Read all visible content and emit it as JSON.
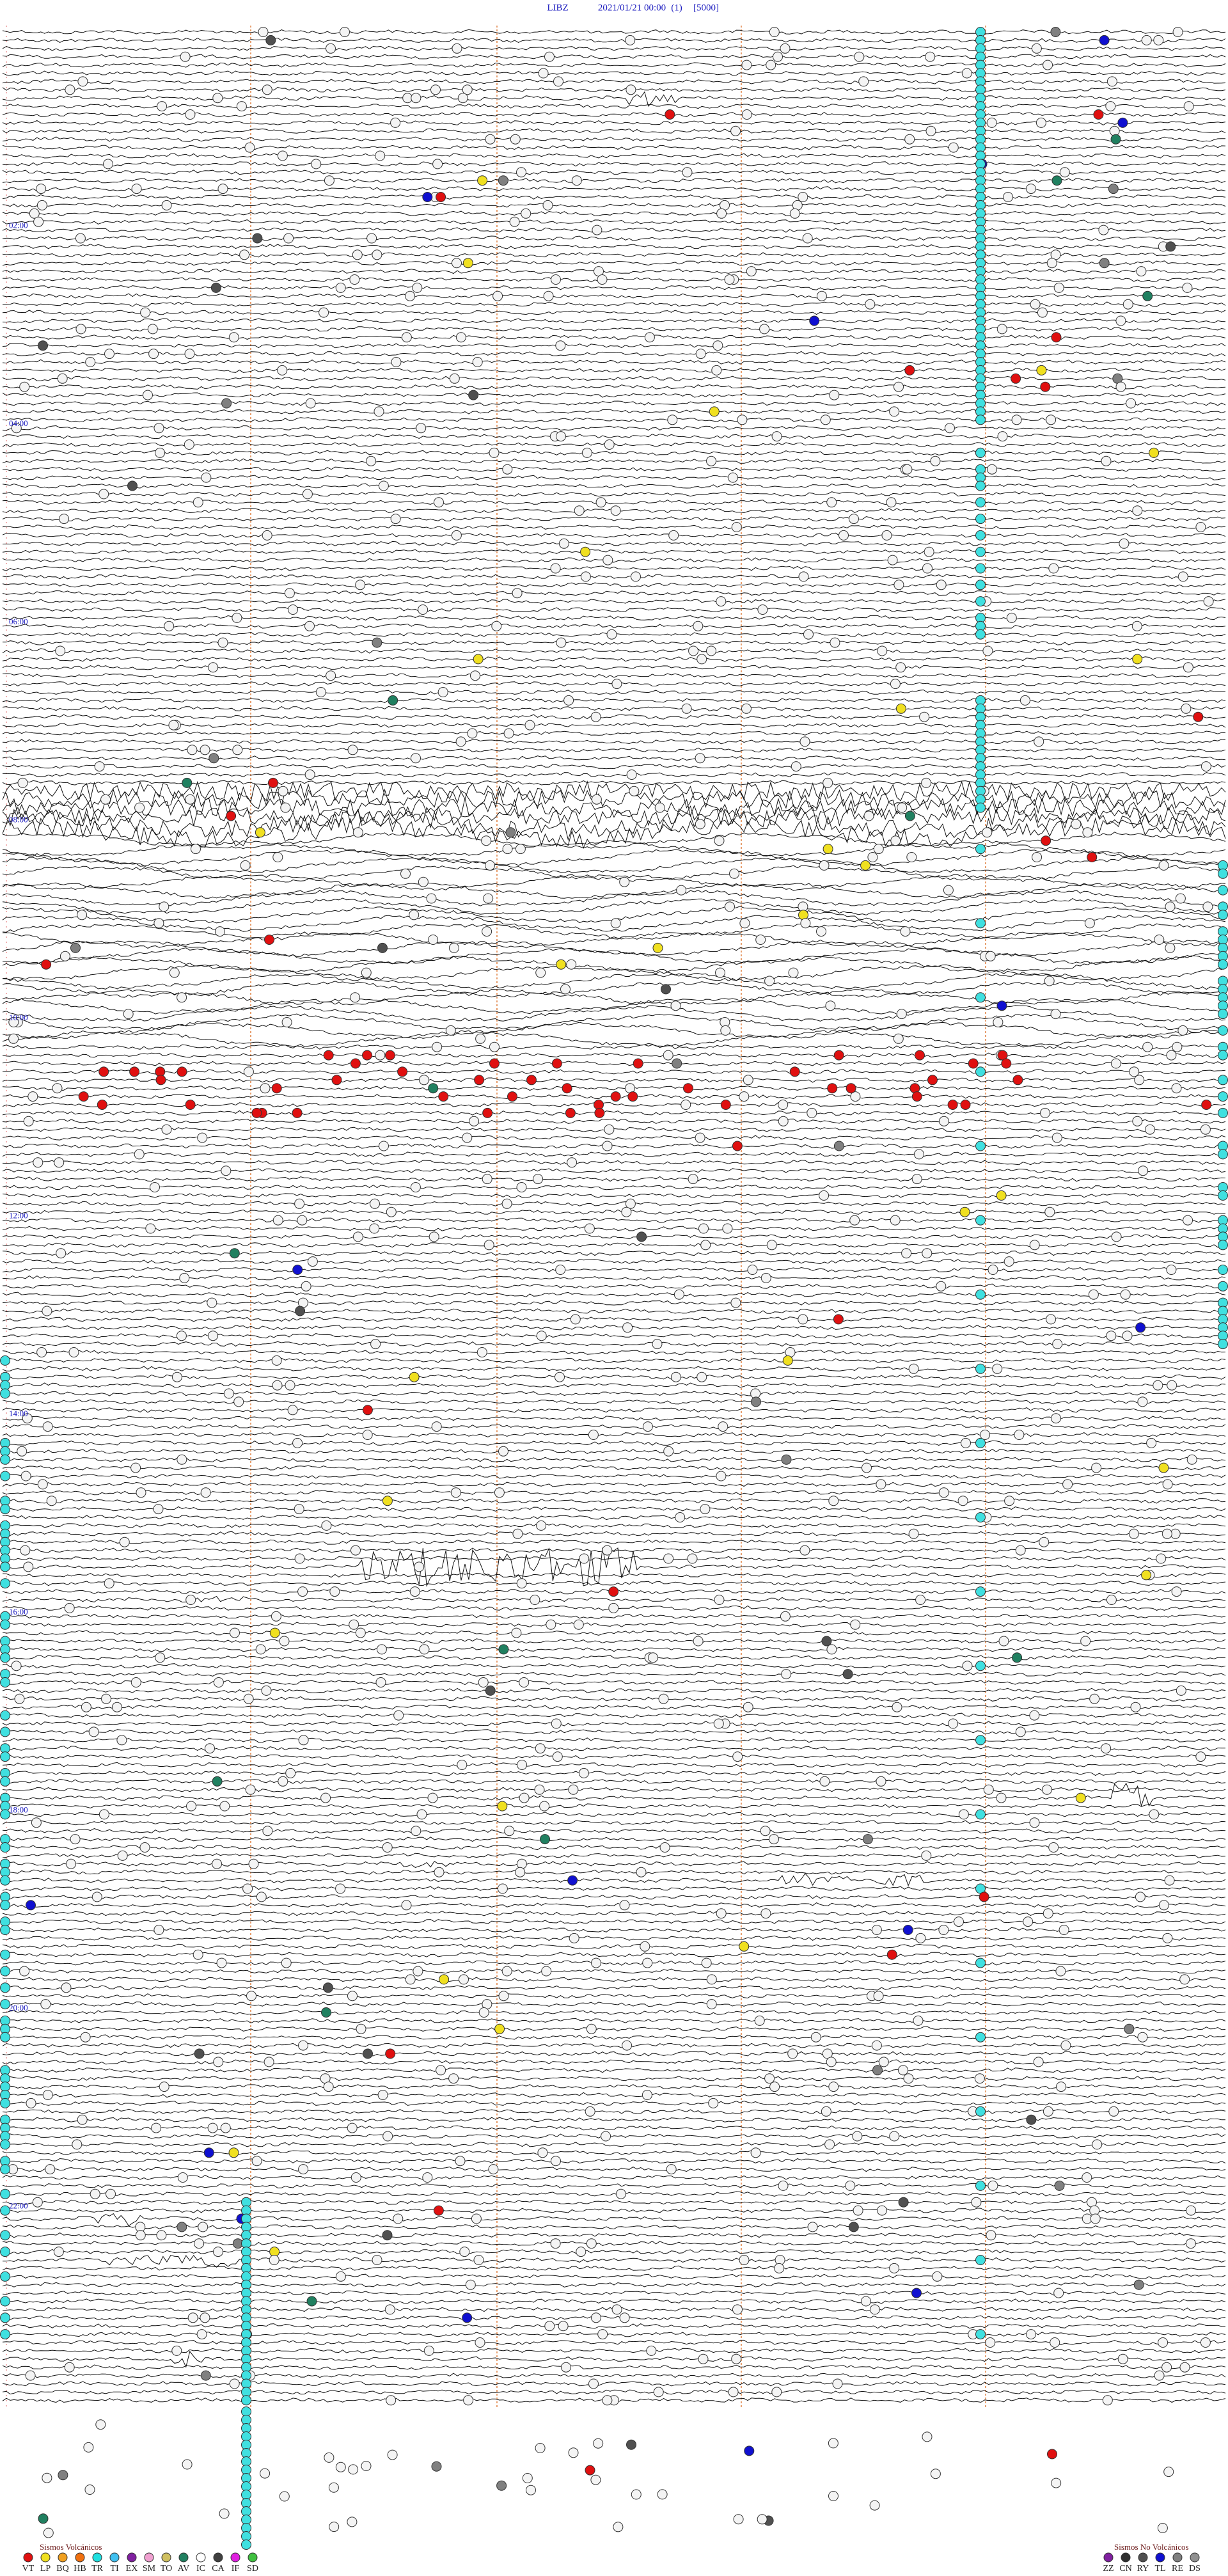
{
  "header": {
    "station": "LIBZ",
    "datetime": "2021/01/21 00:00",
    "channel": "(1)",
    "scale": "[5000]"
  },
  "hour_labels": [
    "02:00",
    "04:00",
    "06:00",
    "08:00",
    "10:00",
    "12:00",
    "14:00",
    "16:00",
    "18:00",
    "20:00",
    "22:00"
  ],
  "legend": {
    "volcanic": {
      "title": "Sismos Volcánicos",
      "codes": [
        {
          "code": "VT",
          "color": "#e01010"
        },
        {
          "code": "LP",
          "color": "#f0e020"
        },
        {
          "code": "BQ",
          "color": "#f0a020"
        },
        {
          "code": "HB",
          "color": "#f07010"
        },
        {
          "code": "TR",
          "color": "#20e0e0"
        },
        {
          "code": "TI",
          "color": "#40c0f0"
        },
        {
          "code": "EX",
          "color": "#8020a0"
        },
        {
          "code": "SM",
          "color": "#f0a0d0"
        },
        {
          "code": "TO",
          "color": "#d0c060"
        },
        {
          "code": "AV",
          "color": "#208060"
        },
        {
          "code": "IC",
          "color": "#ffffff"
        },
        {
          "code": "CA",
          "color": "#404040"
        },
        {
          "code": "IF",
          "color": "#e020e0"
        },
        {
          "code": "SD",
          "color": "#40c040"
        }
      ]
    },
    "non_volcanic": {
      "title": "Sismos No Volcánicos",
      "codes": [
        {
          "code": "ZZ",
          "color": "#8020a0"
        },
        {
          "code": "CN",
          "color": "#303030"
        },
        {
          "code": "RY",
          "color": "#505050"
        },
        {
          "code": "TL",
          "color": "#1010d0"
        },
        {
          "code": "RE",
          "color": "#808080"
        },
        {
          "code": "DS",
          "color": "#909090"
        }
      ]
    }
  }
}
